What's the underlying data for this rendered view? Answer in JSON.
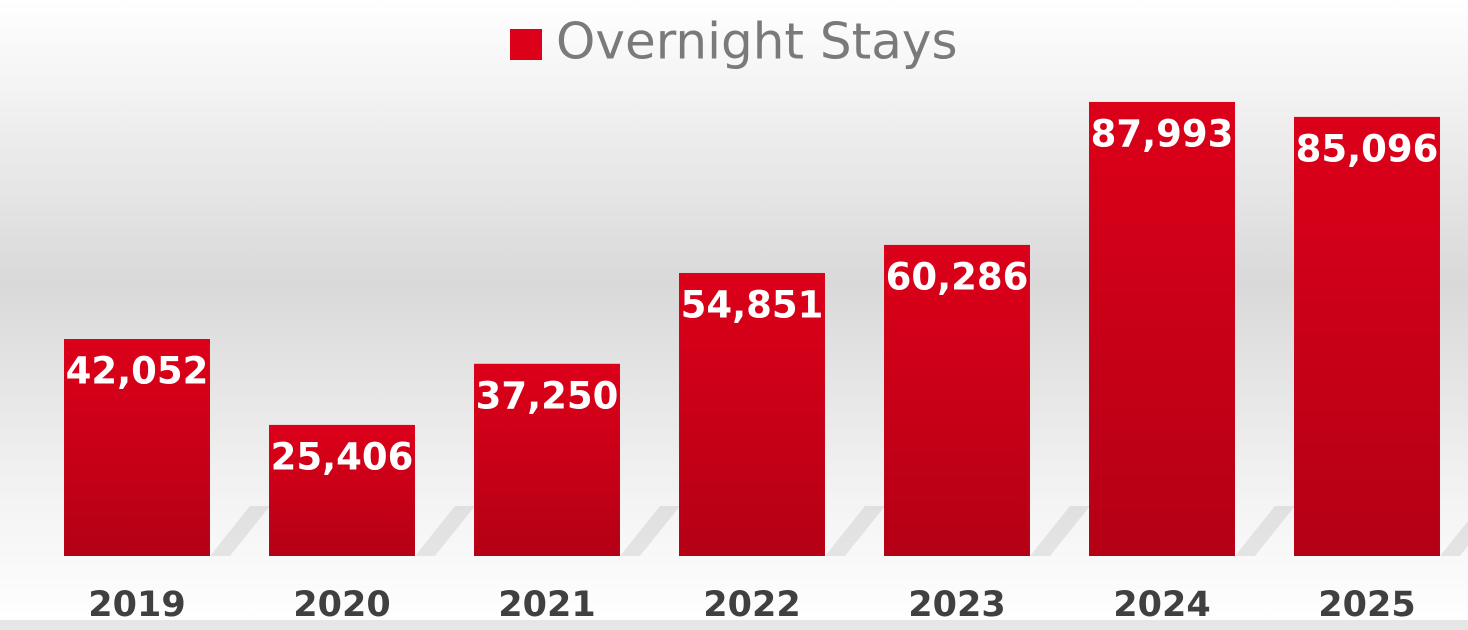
{
  "chart_data": {
    "type": "bar",
    "categories": [
      "2019",
      "2020",
      "2021",
      "2022",
      "2023",
      "2024",
      "2025"
    ],
    "series": [
      {
        "name": "Overnight Stays",
        "color": "#dc0019",
        "values": [
          42052,
          25406,
          37250,
          54851,
          60286,
          87993,
          85096
        ],
        "value_labels": [
          "42,052",
          "25,406",
          "37,250",
          "54,851",
          "60,286",
          "87,993",
          "85,096"
        ]
      }
    ],
    "ylim": [
      0,
      100000
    ],
    "legend": "top"
  }
}
